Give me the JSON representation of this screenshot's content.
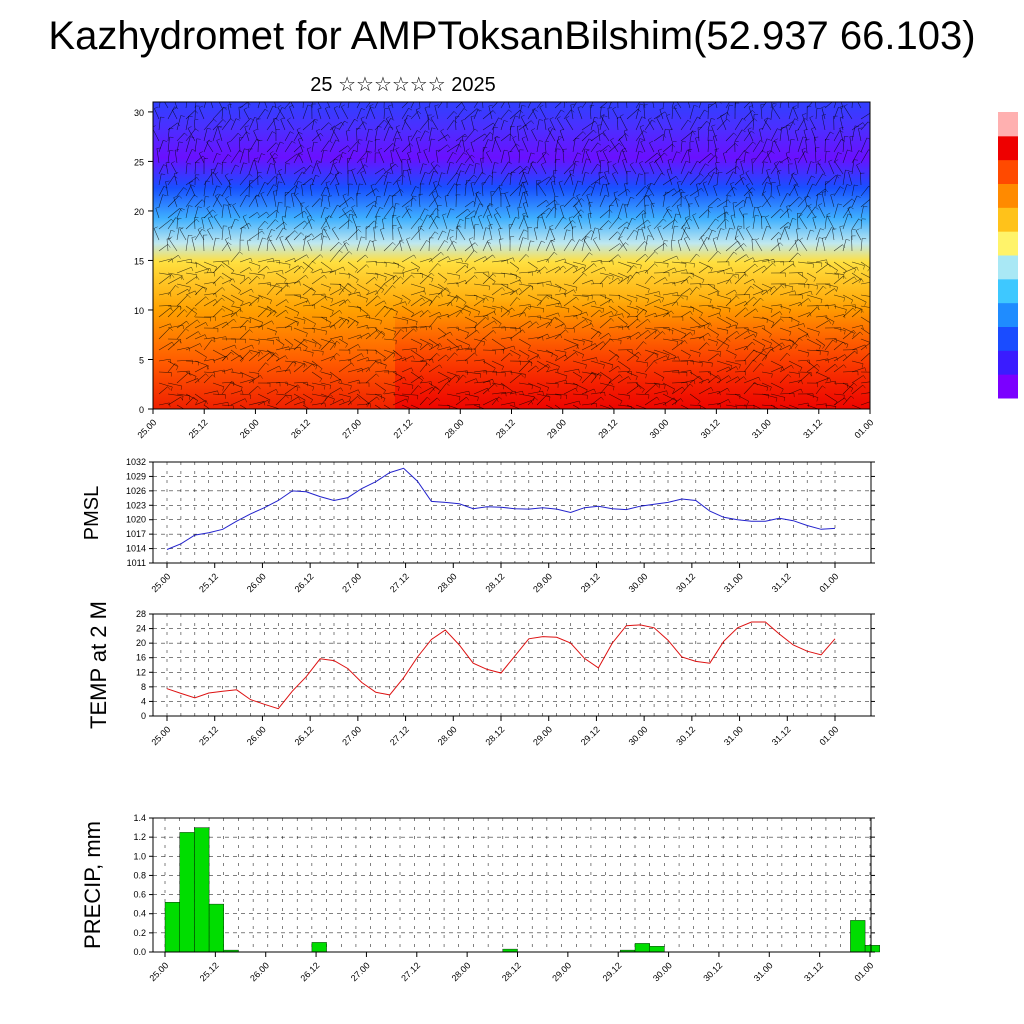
{
  "title": "Kazhydromet for AMPToksanBilshim(52.937 66.103)",
  "subtitle": "25 ☆☆☆☆☆☆ 2025",
  "colors": {
    "pressure_line": "#2222cc",
    "temp_line": "#dd1111",
    "precip_bar": "#00dd00",
    "colorbar": [
      "#7b00ff",
      "#3a1cff",
      "#1a4cff",
      "#1f8cff",
      "#3ec8ff",
      "#a9e8f5",
      "#fff36a",
      "#ffc21a",
      "#ff8a00",
      "#ff4a00",
      "#ee0000",
      "#ffb0b0"
    ]
  },
  "x_tick_labels": [
    "25.00",
    "25.12",
    "26.00",
    "26.12",
    "27.00",
    "27.12",
    "28.00",
    "28.12",
    "29.00",
    "29.12",
    "30.00",
    "30.12",
    "31.00",
    "31.12",
    "01.00"
  ],
  "chart_data": [
    {
      "type": "heatmap",
      "name": "vertical-section",
      "x": [
        "25.00",
        "25.12",
        "26.00",
        "26.12",
        "27.00",
        "27.12",
        "28.00",
        "28.12",
        "29.00",
        "29.12",
        "30.00",
        "30.12",
        "31.00",
        "31.12",
        "01.00"
      ],
      "ylim": [
        0,
        31
      ],
      "yticks": [
        0,
        5,
        10,
        15,
        20,
        25,
        30
      ],
      "xlabel": "",
      "ylabel": ""
    },
    {
      "type": "line",
      "name": "pmsl",
      "ylabel": "PMSL",
      "ylim": [
        1011,
        1032
      ],
      "yticks": [
        1011,
        1014,
        1017,
        1020,
        1023,
        1026,
        1029,
        1032
      ],
      "x": [
        0,
        3,
        6,
        9,
        12,
        15,
        18,
        21,
        24,
        27,
        30,
        33,
        36,
        39,
        42,
        45,
        48,
        51,
        54,
        57,
        60,
        63,
        66,
        69,
        72,
        75,
        78,
        81,
        84,
        87,
        90,
        93,
        96,
        99,
        102,
        105,
        108,
        111,
        114,
        117,
        120,
        123,
        126,
        129,
        132,
        135,
        138,
        141,
        144
      ],
      "values": [
        1013.8,
        1015.0,
        1016.8,
        1017.3,
        1018.0,
        1019.7,
        1021.2,
        1022.5,
        1024.0,
        1026.0,
        1025.8,
        1024.8,
        1024.0,
        1024.6,
        1026.5,
        1027.9,
        1029.8,
        1030.7,
        1028.0,
        1023.8,
        1023.6,
        1023.3,
        1022.3,
        1022.7,
        1022.6,
        1022.3,
        1022.2,
        1022.5,
        1022.2,
        1021.5,
        1022.5,
        1022.8,
        1022.3,
        1022.1,
        1022.8,
        1023.2,
        1023.6,
        1024.3,
        1024.0,
        1021.8,
        1020.5,
        1020.0,
        1019.7,
        1019.7,
        1020.3,
        1019.8,
        1018.8,
        1018.0,
        1018.2
      ]
    },
    {
      "type": "line",
      "name": "temp",
      "ylabel": "TEMP at 2 M",
      "ylim": [
        0,
        28
      ],
      "yticks": [
        0,
        4,
        8,
        12,
        16,
        20,
        24,
        28
      ],
      "x": [
        0,
        3,
        6,
        9,
        12,
        15,
        18,
        21,
        24,
        27,
        30,
        33,
        36,
        39,
        42,
        45,
        48,
        51,
        54,
        57,
        60,
        63,
        66,
        69,
        72,
        75,
        78,
        81,
        84,
        87,
        90,
        93,
        96,
        99,
        102,
        105,
        108,
        111,
        114,
        117,
        120,
        123,
        126,
        129,
        132,
        135,
        138,
        141,
        144
      ],
      "values": [
        7.5,
        6.2,
        5.0,
        6.3,
        6.8,
        7.2,
        4.5,
        3.2,
        2.0,
        6.8,
        10.8,
        15.7,
        15.2,
        13.0,
        9.2,
        6.5,
        5.8,
        10.5,
        16.2,
        21.0,
        23.6,
        19.5,
        14.5,
        12.8,
        11.8,
        16.5,
        21.2,
        21.8,
        21.6,
        20.0,
        15.8,
        13.2,
        20.0,
        24.8,
        25.0,
        24.2,
        20.8,
        16.2,
        15.0,
        14.5,
        20.5,
        24.2,
        25.8,
        25.8,
        22.5,
        19.5,
        17.8,
        16.8,
        21.2
      ]
    },
    {
      "type": "bar",
      "name": "precip",
      "ylabel": "PRECIP, mm",
      "ylim": [
        0,
        1.4
      ],
      "yticks": [
        0.0,
        0.2,
        0.4,
        0.6,
        0.8,
        1.0,
        1.2,
        1.4
      ],
      "x": [
        0,
        3,
        6,
        9,
        12,
        30,
        69,
        93,
        96,
        99,
        102,
        140,
        143
      ],
      "values": [
        0.52,
        1.25,
        1.3,
        0.5,
        0.02,
        0.1,
        0.03,
        0.02,
        0.09,
        0.06,
        0.0,
        0.33,
        0.07
      ]
    }
  ]
}
